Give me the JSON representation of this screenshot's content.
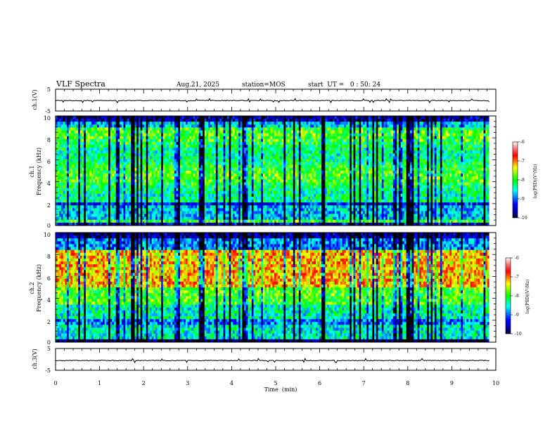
{
  "header": {
    "title": "VLF Spectra",
    "date": "Aug.21, 2025",
    "station": "station=MOS",
    "start_ut": "start  UT =   0 : 50: 24"
  },
  "chart_data": [
    {
      "type": "line",
      "name": "ch1-waveform",
      "ylabel": "ch.1(V)",
      "xlim": [
        0,
        10
      ],
      "ylim": [
        -5,
        5
      ],
      "yticks": [
        "5",
        "-5"
      ],
      "data_extent_min": 9.85,
      "level": -0.2
    },
    {
      "type": "heatmap",
      "name": "ch1-spectrogram",
      "ylabel_line1": "ch.1",
      "ylabel_line2": "Frequency (kHz)",
      "xlim": [
        0,
        10
      ],
      "ylim": [
        0,
        10
      ],
      "yticks": [
        "0",
        "2",
        "4",
        "6",
        "8",
        "10"
      ],
      "data_extent_min": 9.85,
      "colorbar": {
        "label": "log(PSD)(V²/Hz)",
        "ticks": [
          "-6",
          "-7",
          "-8",
          "-9",
          "-10"
        ],
        "range": [
          -10,
          -6
        ]
      }
    },
    {
      "type": "heatmap",
      "name": "ch2-spectrogram",
      "ylabel_line1": "ch.2",
      "ylabel_line2": "Frequency (kHz)",
      "xlim": [
        0,
        10
      ],
      "ylim": [
        0,
        10
      ],
      "yticks": [
        "0",
        "2",
        "4",
        "6",
        "8",
        "10"
      ],
      "data_extent_min": 9.85,
      "colorbar": {
        "label": "log(PSD)(V²/Hz)",
        "ticks": [
          "-6",
          "-7",
          "-8",
          "-9",
          "-10"
        ],
        "range": [
          -10,
          -6
        ]
      }
    },
    {
      "type": "line",
      "name": "ch3-waveform",
      "ylabel": "ch.3(V)",
      "xlim": [
        0,
        10
      ],
      "ylim": [
        -5,
        5
      ],
      "yticks": [
        "5",
        "-5"
      ],
      "data_extent_min": 9.85,
      "level": -0.5
    }
  ],
  "xaxis": {
    "label": "Time  (min)",
    "ticks": [
      "0",
      "1",
      "2",
      "3",
      "4",
      "5",
      "6",
      "7",
      "8",
      "9",
      "10"
    ]
  }
}
